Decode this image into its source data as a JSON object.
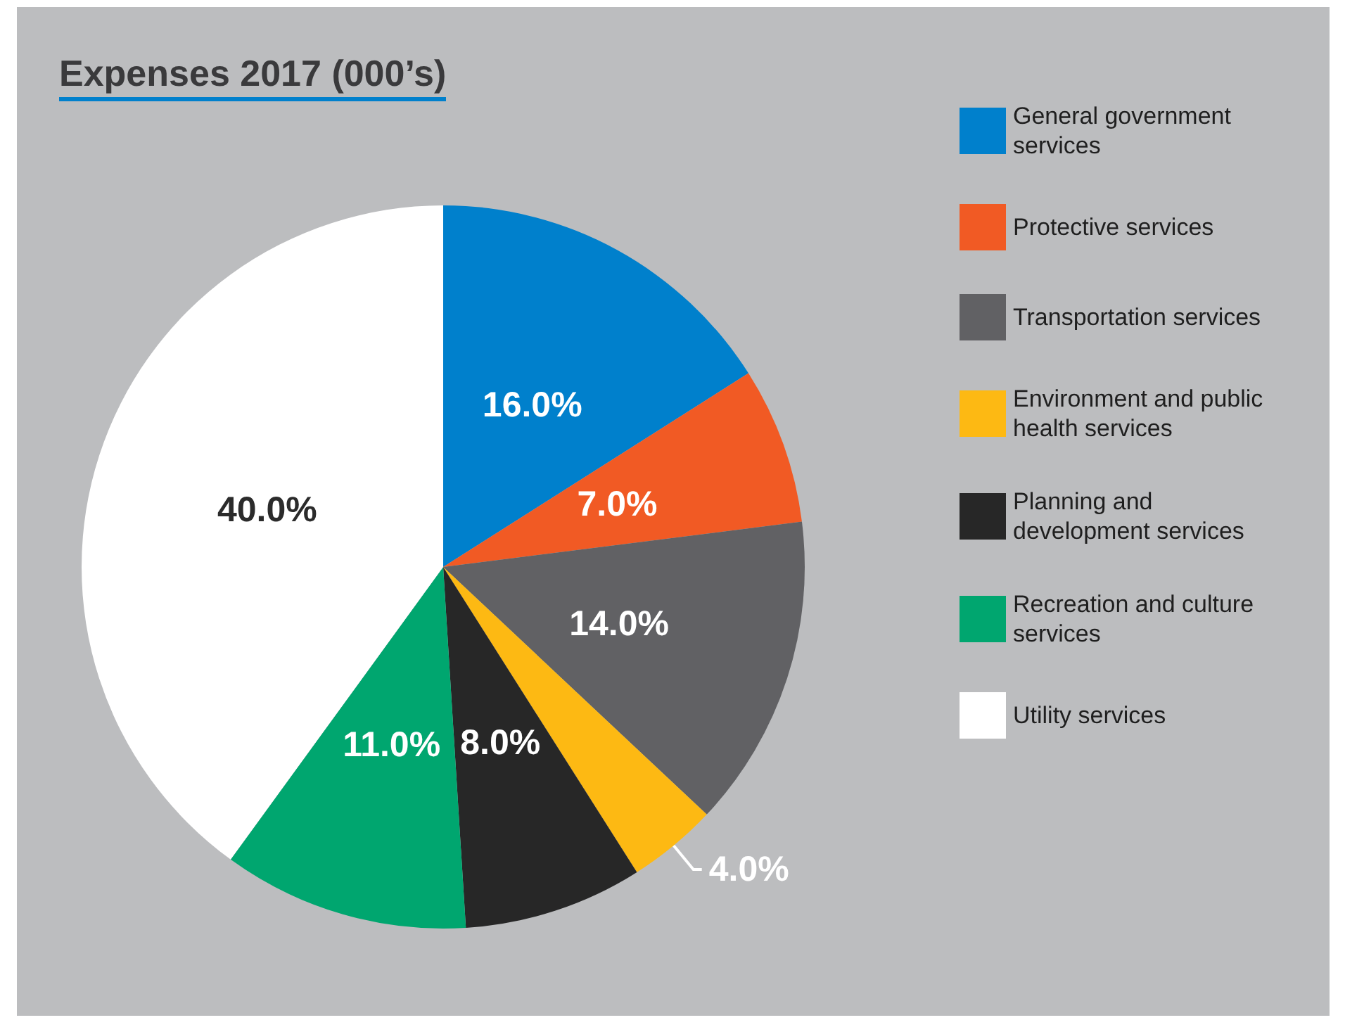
{
  "chart_data": {
    "type": "pie",
    "title": "Expenses 2017 (000’s)",
    "categories": [
      "General government services",
      "Protective services",
      "Transportation services",
      "Environment and public health services",
      "Planning and development services",
      "Recreation and culture services",
      "Utility services"
    ],
    "values": [
      16,
      7,
      14,
      4,
      8,
      11,
      40
    ],
    "value_labels": [
      "16.0%",
      "7.0%",
      "14.0%",
      "4.0%",
      "8.0%",
      "11.0%",
      "40.0%"
    ],
    "colors": [
      "#0080cc",
      "#f15a24",
      "#616164",
      "#fdb913",
      "#272727",
      "#00a66f",
      "#ffffff"
    ],
    "legend": "right"
  }
}
